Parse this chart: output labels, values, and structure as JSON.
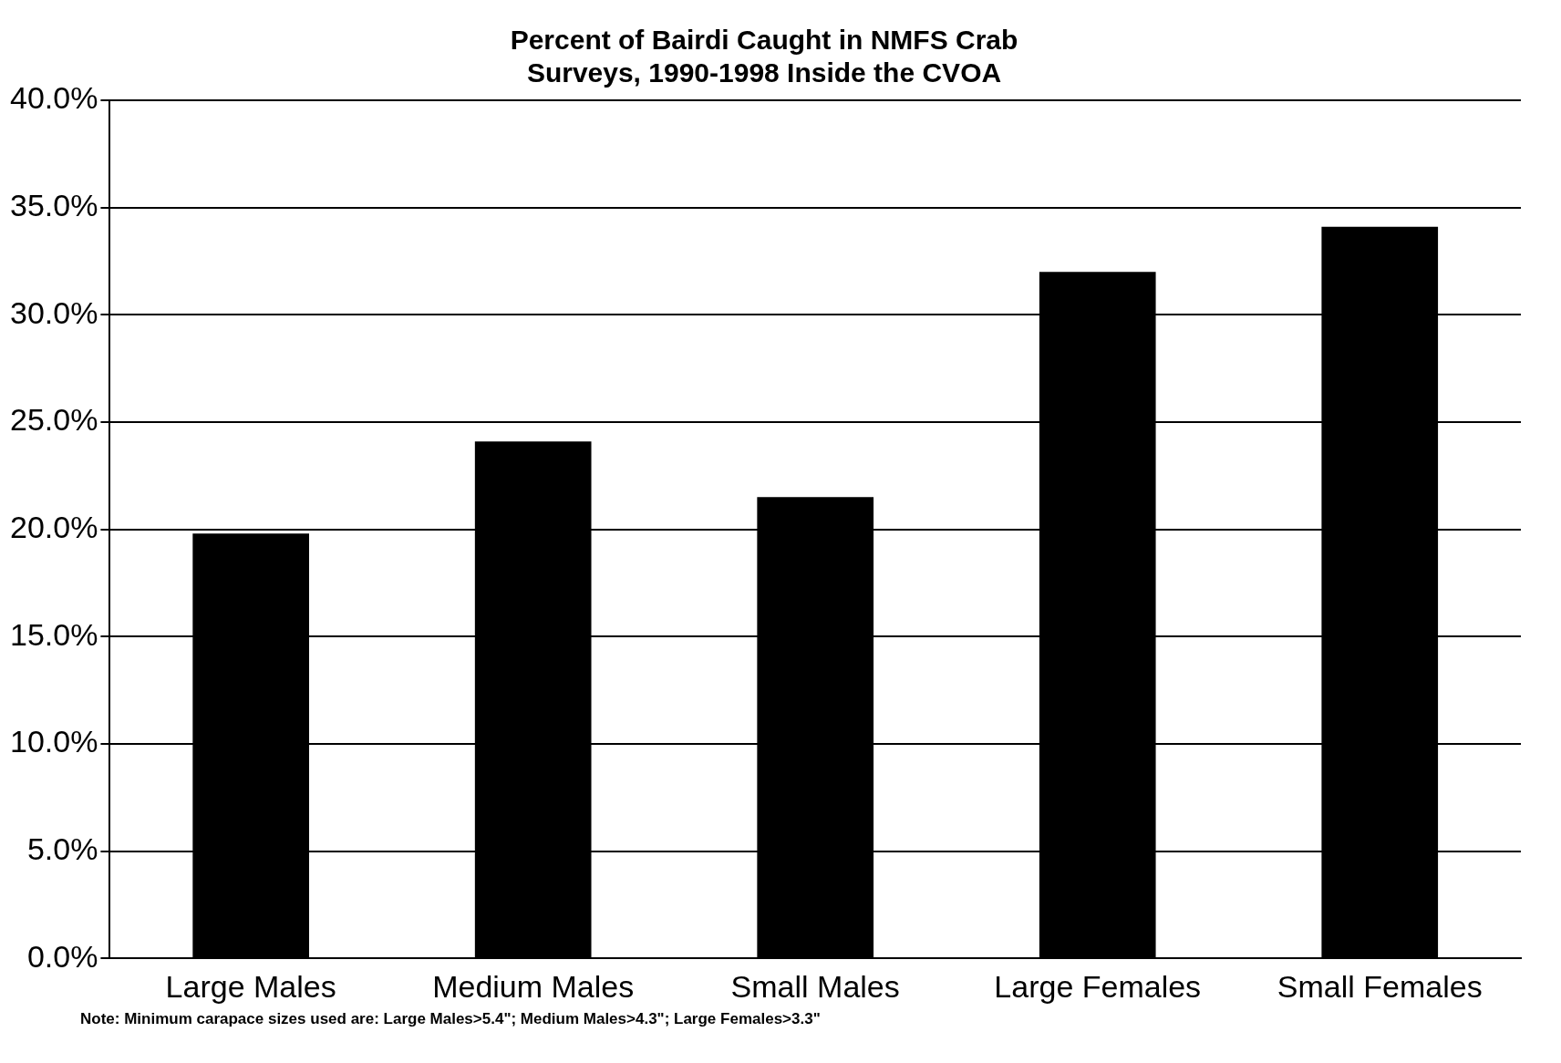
{
  "chart_data": {
    "type": "bar",
    "title": [
      "Percent of Bairdi Caught in NMFS Crab",
      "Surveys, 1990-1998 Inside the CVOA"
    ],
    "categories": [
      "Large Males",
      "Medium Males",
      "Small Males",
      "Large Females",
      "Small Females"
    ],
    "values": [
      19.8,
      24.1,
      21.5,
      32.0,
      34.1
    ],
    "color": "#000000",
    "ylim": [
      0,
      40
    ],
    "yticks": [
      {
        "value": 0,
        "label": "0.0%"
      },
      {
        "value": 5,
        "label": "5.0%"
      },
      {
        "value": 10,
        "label": "10.0%"
      },
      {
        "value": 15,
        "label": "15.0%"
      },
      {
        "value": 20,
        "label": "20.0%"
      },
      {
        "value": 25,
        "label": "25.0%"
      },
      {
        "value": 30,
        "label": "30.0%"
      },
      {
        "value": 35,
        "label": "35.0%"
      },
      {
        "value": 40,
        "label": "40.0%"
      }
    ],
    "grid": "y",
    "legend": false,
    "annotations": [
      "Note: Minimum carapace sizes used are:  Large Males>5.4\"; Medium Males>4.3\"; Large Females>3.3\""
    ]
  }
}
